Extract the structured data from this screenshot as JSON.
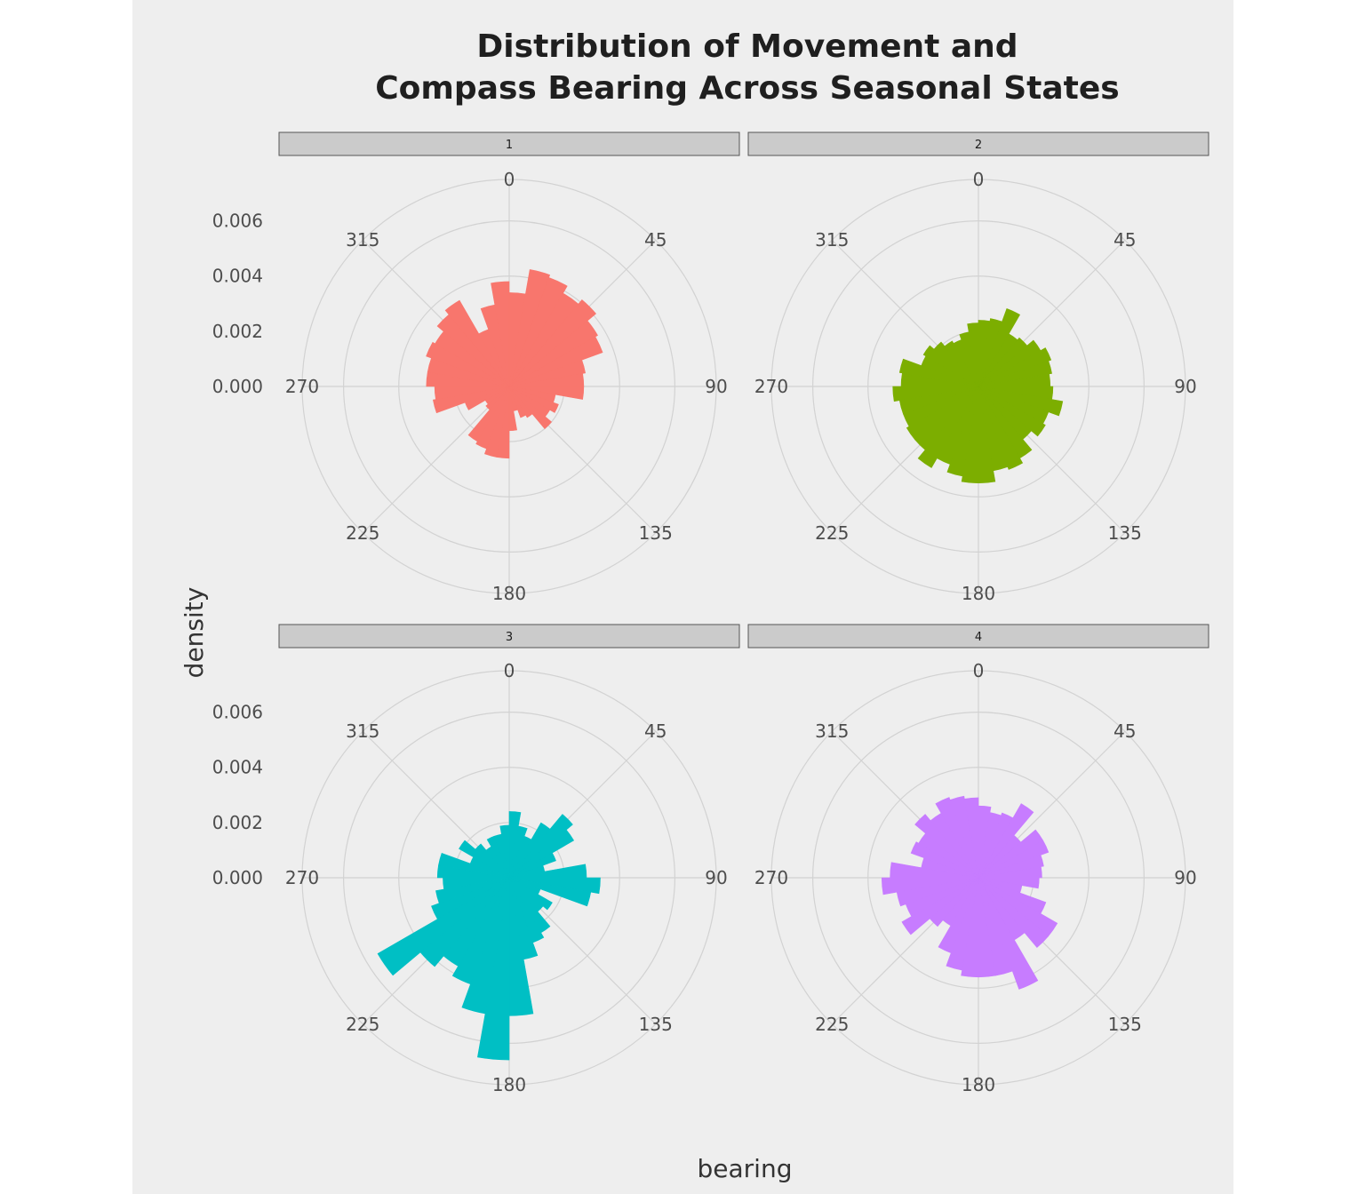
{
  "chart_data": {
    "type": "bar",
    "coord": "polar",
    "title": "Distribution of Movement and\nCompass Bearing Across Seasonal States",
    "title_lines": [
      "Distribution of Movement and",
      "Compass Bearing Across Seasonal States"
    ],
    "xlabel": "bearing",
    "ylabel": "density",
    "x_ticks": [
      "0",
      "45",
      "90",
      "135",
      "180",
      "225",
      "270",
      "315"
    ],
    "y_ticks": [
      "0.000",
      "0.002",
      "0.004",
      "0.006"
    ],
    "ylim": [
      0,
      0.0075
    ],
    "grid": true,
    "bin_width_degrees": 10,
    "panels": [
      {
        "label": "1",
        "color": "#F8766D",
        "bins_start_deg": [
          0,
          10,
          20,
          30,
          40,
          50,
          60,
          70,
          80,
          90,
          100,
          110,
          120,
          130,
          140,
          150,
          160,
          170,
          180,
          190,
          200,
          210,
          220,
          230,
          240,
          250,
          260,
          270,
          280,
          290,
          300,
          310,
          320,
          330,
          340,
          350
        ],
        "values": [
          0.0034,
          0.0043,
          0.0042,
          0.0039,
          0.0041,
          0.0037,
          0.0036,
          0.0028,
          0.0027,
          0.0027,
          0.0017,
          0.0019,
          0.0017,
          0.002,
          0.0013,
          0.0012,
          0.0009,
          0.0016,
          0.0026,
          0.0026,
          0.0024,
          0.0023,
          0.0011,
          0.001,
          0.0017,
          0.0028,
          0.0027,
          0.003,
          0.003,
          0.0032,
          0.0031,
          0.0034,
          0.0036,
          0.0022,
          0.003,
          0.0038
        ]
      },
      {
        "label": "2",
        "color": "#7CAE00",
        "bins_start_deg": [
          0,
          10,
          20,
          30,
          40,
          50,
          60,
          70,
          80,
          90,
          100,
          110,
          120,
          130,
          140,
          150,
          160,
          170,
          180,
          190,
          200,
          210,
          220,
          230,
          240,
          250,
          260,
          270,
          280,
          290,
          300,
          310,
          320,
          330,
          340,
          350
        ],
        "values": [
          0.0024,
          0.0025,
          0.003,
          0.0022,
          0.0023,
          0.0026,
          0.0028,
          0.0027,
          0.0026,
          0.0027,
          0.0031,
          0.0027,
          0.0028,
          0.0025,
          0.003,
          0.0032,
          0.0031,
          0.0035,
          0.0035,
          0.0033,
          0.003,
          0.0034,
          0.003,
          0.003,
          0.0029,
          0.0029,
          0.0031,
          0.0028,
          0.0029,
          0.0022,
          0.0023,
          0.0021,
          0.0019,
          0.0018,
          0.002,
          0.0023
        ]
      },
      {
        "label": "3",
        "color": "#00BFC4",
        "bins_start_deg": [
          0,
          10,
          20,
          30,
          40,
          50,
          60,
          70,
          80,
          90,
          100,
          110,
          120,
          130,
          140,
          150,
          160,
          170,
          180,
          190,
          200,
          210,
          220,
          230,
          240,
          250,
          260,
          270,
          280,
          290,
          300,
          310,
          320,
          330,
          340,
          350
        ],
        "values": [
          0.0024,
          0.0019,
          0.0016,
          0.0023,
          0.003,
          0.0027,
          0.0018,
          0.0013,
          0.0028,
          0.0033,
          0.003,
          0.0012,
          0.0018,
          0.0016,
          0.0023,
          0.0025,
          0.003,
          0.005,
          0.0066,
          0.005,
          0.0041,
          0.0037,
          0.0042,
          0.0055,
          0.003,
          0.0027,
          0.0024,
          0.0026,
          0.0026,
          0.0015,
          0.0021,
          0.0016,
          0.0013,
          0.0016,
          0.0016,
          0.0019
        ]
      },
      {
        "label": "4",
        "color": "#C77CFF",
        "bins_start_deg": [
          0,
          10,
          20,
          30,
          40,
          50,
          60,
          70,
          80,
          90,
          100,
          110,
          120,
          130,
          140,
          150,
          160,
          170,
          180,
          190,
          200,
          210,
          220,
          230,
          240,
          250,
          260,
          270,
          280,
          290,
          300,
          310,
          320,
          330,
          340,
          350
        ],
        "values": [
          0.0026,
          0.0024,
          0.0025,
          0.0031,
          0.002,
          0.0027,
          0.0027,
          0.0024,
          0.0023,
          0.0022,
          0.0016,
          0.0026,
          0.0033,
          0.0033,
          0.0026,
          0.0043,
          0.0036,
          0.0036,
          0.0036,
          0.0034,
          0.0029,
          0.002,
          0.0023,
          0.0032,
          0.0028,
          0.003,
          0.0035,
          0.0032,
          0.0021,
          0.0026,
          0.0025,
          0.003,
          0.0027,
          0.0031,
          0.003,
          0.0029
        ]
      }
    ]
  }
}
